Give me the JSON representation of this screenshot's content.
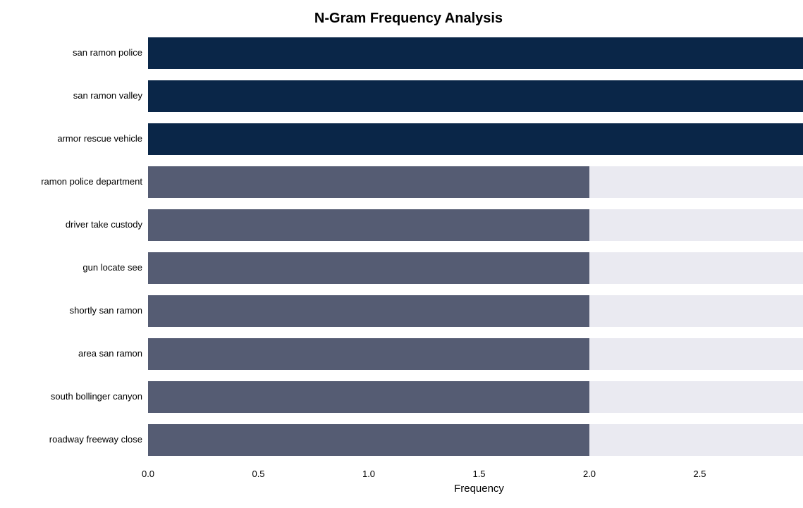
{
  "chart": {
    "type": "bar-horizontal",
    "title": "N-Gram Frequency Analysis",
    "title_fontsize": 20,
    "title_fontweight": "bold",
    "x_axis_label": "Frequency",
    "x_axis_label_fontsize": 15,
    "tick_fontsize": 13,
    "ylabel_fontsize": 13,
    "xlim": [
      0.0,
      3.0
    ],
    "xtick_start": 0.0,
    "xtick_step": 0.5,
    "xtick_count": 7,
    "xtick_decimals": 1,
    "background_color": "#ffffff",
    "band_bg_color": "#eaeaf1",
    "band_height_ratio": 0.75,
    "grid_color": "#ffffff",
    "categories": [
      "san ramon police",
      "san ramon valley",
      "armor rescue vehicle",
      "ramon police department",
      "driver take custody",
      "gun locate see",
      "shortly san ramon",
      "area san ramon",
      "south bollinger canyon",
      "roadway freeway close"
    ],
    "values": [
      3.0,
      3.0,
      3.0,
      2.0,
      2.0,
      2.0,
      2.0,
      2.0,
      2.0,
      2.0
    ],
    "bar_colors": [
      "#0a2648",
      "#0a2648",
      "#0a2648",
      "#555c73",
      "#555c73",
      "#555c73",
      "#555c73",
      "#555c73",
      "#555c73",
      "#555c73"
    ]
  }
}
